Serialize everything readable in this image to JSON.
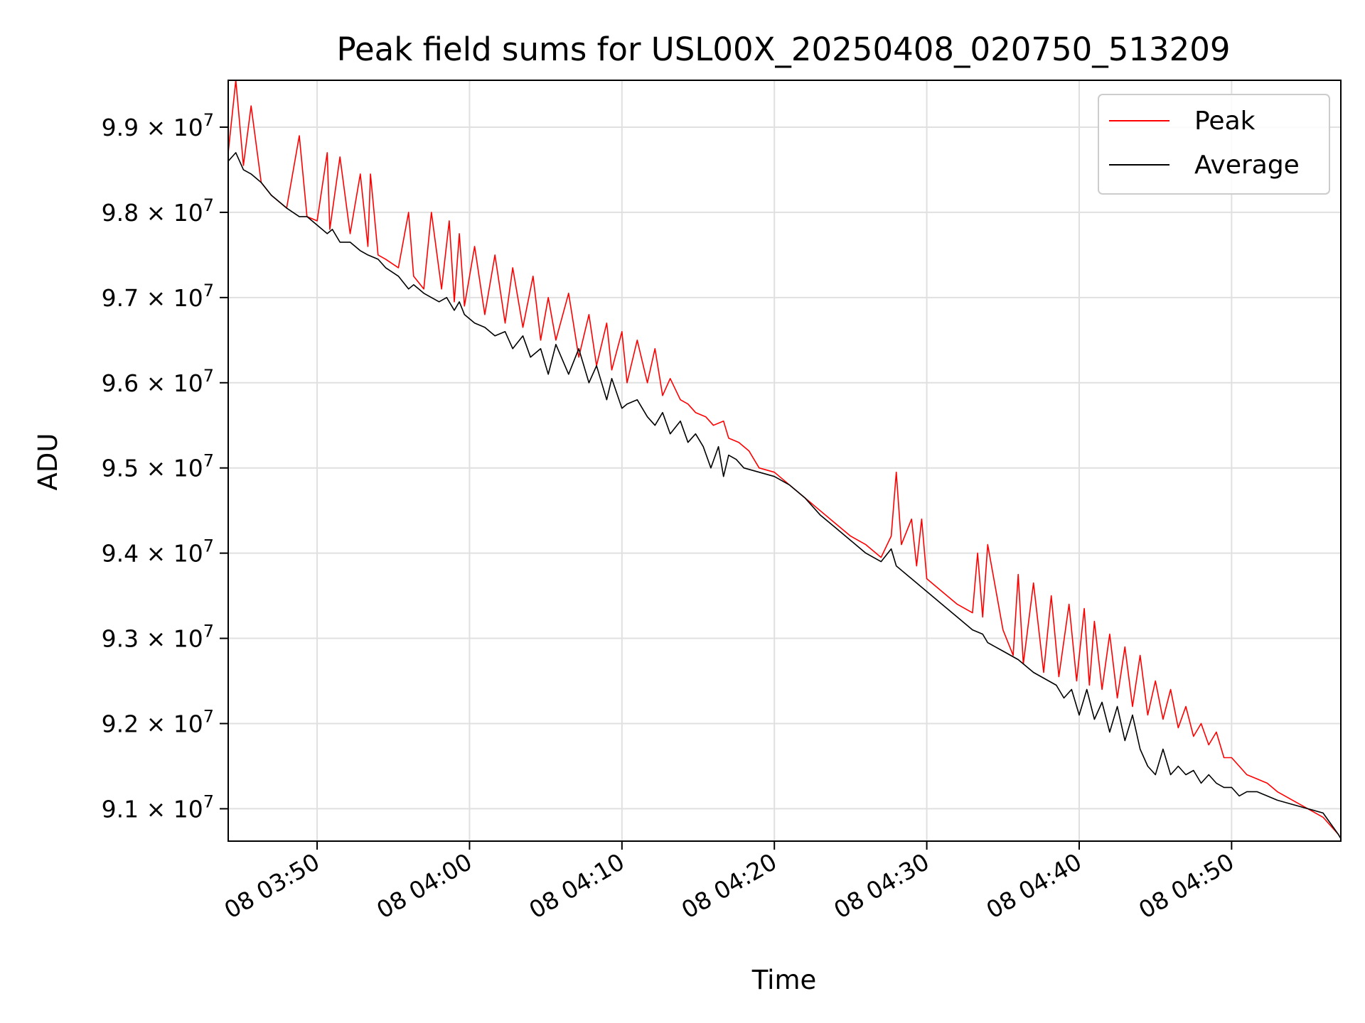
{
  "chart_data": {
    "type": "line",
    "title": "Peak field sums for USL00X_20250408_020750_513209",
    "xlabel": "Time",
    "ylabel": "ADU",
    "grid": true,
    "legend_position": "top-right",
    "x_range": [
      "03:44:10",
      "04:57:10"
    ],
    "ylim": [
      90620000,
      99550000
    ],
    "x_ticks": [
      "03:50",
      "04:00",
      "04:10",
      "04:20",
      "04:30",
      "04:40",
      "04:50"
    ],
    "x_tick_labels": [
      "08 03:50",
      "08 04:00",
      "08 04:10",
      "08 04:20",
      "08 04:30",
      "08 04:40",
      "08 04:50"
    ],
    "y_ticks": [
      91000000,
      92000000,
      93000000,
      94000000,
      95000000,
      96000000,
      97000000,
      98000000,
      99000000
    ],
    "y_tick_labels": [
      {
        "mant": "9.1",
        "exp": "7"
      },
      {
        "mant": "9.2",
        "exp": "7"
      },
      {
        "mant": "9.3",
        "exp": "7"
      },
      {
        "mant": "9.4",
        "exp": "7"
      },
      {
        "mant": "9.5",
        "exp": "7"
      },
      {
        "mant": "9.6",
        "exp": "7"
      },
      {
        "mant": "9.7",
        "exp": "7"
      },
      {
        "mant": "9.8",
        "exp": "7"
      },
      {
        "mant": "9.9",
        "exp": "7"
      }
    ],
    "series": [
      {
        "name": "Peak",
        "color": "#ff0000",
        "x": [
          "03:44:10",
          "03:44:40",
          "03:45:10",
          "03:45:40",
          "03:46:20",
          "03:47:00",
          "03:48:00",
          "03:48:50",
          "03:49:20",
          "03:50:00",
          "03:50:40",
          "03:50:50",
          "03:51:30",
          "03:52:10",
          "03:52:50",
          "03:53:20",
          "03:53:30",
          "03:54:00",
          "03:54:30",
          "03:55:20",
          "03:56:00",
          "03:56:20",
          "03:57:00",
          "03:57:30",
          "03:58:10",
          "03:58:40",
          "03:59:00",
          "03:59:20",
          "03:59:40",
          "04:00:20",
          "04:01:00",
          "04:01:40",
          "04:02:20",
          "04:02:50",
          "04:03:30",
          "04:04:10",
          "04:04:40",
          "04:05:10",
          "04:05:40",
          "04:06:30",
          "04:07:10",
          "04:07:50",
          "04:08:20",
          "04:09:00",
          "04:09:20",
          "04:10:00",
          "04:10:20",
          "04:11:00",
          "04:11:40",
          "04:12:10",
          "04:12:40",
          "04:13:10",
          "04:13:50",
          "04:14:20",
          "04:14:50",
          "04:15:30",
          "04:16:00",
          "04:16:40",
          "04:17:00",
          "04:17:40",
          "04:18:20",
          "04:19:00",
          "04:20:00",
          "04:21:00",
          "04:22:00",
          "04:23:00",
          "04:24:00",
          "04:25:00",
          "04:26:00",
          "04:27:00",
          "04:27:40",
          "04:28:00",
          "04:28:20",
          "04:29:00",
          "04:29:20",
          "04:29:40",
          "04:30:00",
          "04:31:00",
          "04:32:00",
          "04:33:00",
          "04:33:20",
          "04:33:40",
          "04:34:00",
          "04:35:00",
          "04:35:40",
          "04:36:00",
          "04:36:20",
          "04:37:00",
          "04:37:40",
          "04:38:10",
          "04:38:40",
          "04:39:20",
          "04:39:50",
          "04:40:20",
          "04:40:40",
          "04:41:00",
          "04:41:30",
          "04:42:00",
          "04:42:30",
          "04:43:00",
          "04:43:30",
          "04:44:00",
          "04:44:30",
          "04:45:00",
          "04:45:30",
          "04:46:00",
          "04:46:30",
          "04:47:00",
          "04:47:30",
          "04:48:00",
          "04:48:30",
          "04:49:00",
          "04:49:30",
          "04:50:00",
          "04:50:30",
          "04:51:00",
          "04:51:40",
          "04:52:20",
          "04:53:00",
          "04:54:00",
          "04:55:00",
          "04:56:00",
          "04:57:00",
          "04:57:10"
        ],
        "y": [
          98700000,
          99550000,
          98550000,
          99250000,
          98350000,
          98200000,
          98050000,
          98900000,
          97950000,
          97900000,
          98700000,
          97800000,
          98650000,
          97750000,
          98450000,
          97600000,
          98450000,
          97500000,
          97450000,
          97350000,
          98000000,
          97250000,
          97100000,
          98000000,
          97100000,
          97900000,
          96950000,
          97750000,
          96900000,
          97600000,
          96800000,
          97500000,
          96700000,
          97350000,
          96650000,
          97250000,
          96500000,
          97000000,
          96500000,
          97050000,
          96300000,
          96800000,
          96200000,
          96700000,
          96150000,
          96600000,
          96000000,
          96500000,
          96000000,
          96400000,
          95850000,
          96050000,
          95800000,
          95750000,
          95650000,
          95600000,
          95500000,
          95550000,
          95350000,
          95300000,
          95200000,
          95000000,
          94950000,
          94800000,
          94650000,
          94500000,
          94350000,
          94200000,
          94100000,
          93950000,
          94200000,
          94950000,
          94100000,
          94400000,
          93850000,
          94400000,
          93700000,
          93550000,
          93400000,
          93300000,
          94000000,
          93250000,
          94100000,
          93100000,
          92800000,
          93750000,
          92700000,
          93650000,
          92600000,
          93500000,
          92550000,
          93400000,
          92500000,
          93350000,
          92450000,
          93200000,
          92400000,
          93050000,
          92300000,
          92900000,
          92200000,
          92800000,
          92100000,
          92500000,
          92050000,
          92400000,
          91950000,
          92200000,
          91850000,
          92000000,
          91750000,
          91900000,
          91600000,
          91600000,
          91500000,
          91400000,
          91350000,
          91300000,
          91200000,
          91100000,
          91000000,
          90900000,
          90700000,
          90650000
        ]
      },
      {
        "name": "Average",
        "color": "#000000",
        "x": [
          "03:44:10",
          "03:44:40",
          "03:45:10",
          "03:45:40",
          "03:46:20",
          "03:47:00",
          "03:48:00",
          "03:48:50",
          "03:49:20",
          "03:50:00",
          "03:50:40",
          "03:51:00",
          "03:51:30",
          "03:52:10",
          "03:52:50",
          "03:53:20",
          "03:54:00",
          "03:54:30",
          "03:55:20",
          "03:56:00",
          "03:56:20",
          "03:57:00",
          "03:57:30",
          "03:58:00",
          "03:58:30",
          "03:59:00",
          "03:59:20",
          "03:59:40",
          "04:00:20",
          "04:01:00",
          "04:01:40",
          "04:02:20",
          "04:02:50",
          "04:03:30",
          "04:04:00",
          "04:04:40",
          "04:05:10",
          "04:05:40",
          "04:06:30",
          "04:07:10",
          "04:07:50",
          "04:08:20",
          "04:09:00",
          "04:09:20",
          "04:10:00",
          "04:10:20",
          "04:11:00",
          "04:11:40",
          "04:12:10",
          "04:12:40",
          "04:13:10",
          "04:13:50",
          "04:14:20",
          "04:14:50",
          "04:15:20",
          "04:15:50",
          "04:16:20",
          "04:16:40",
          "04:17:00",
          "04:17:30",
          "04:18:00",
          "04:19:00",
          "04:20:00",
          "04:21:00",
          "04:22:00",
          "04:23:00",
          "04:24:00",
          "04:25:00",
          "04:26:00",
          "04:27:00",
          "04:27:40",
          "04:28:00",
          "04:28:40",
          "04:29:00",
          "04:30:00",
          "04:31:00",
          "04:32:00",
          "04:33:00",
          "04:33:40",
          "04:34:00",
          "04:35:00",
          "04:36:00",
          "04:37:00",
          "04:38:00",
          "04:38:30",
          "04:39:00",
          "04:39:30",
          "04:40:00",
          "04:40:30",
          "04:41:00",
          "04:41:30",
          "04:42:00",
          "04:42:30",
          "04:43:00",
          "04:43:30",
          "04:44:00",
          "04:44:30",
          "04:45:00",
          "04:45:30",
          "04:46:00",
          "04:46:30",
          "04:47:00",
          "04:47:30",
          "04:48:00",
          "04:48:30",
          "04:49:00",
          "04:49:30",
          "04:50:00",
          "04:50:30",
          "04:51:00",
          "04:51:40",
          "04:52:20",
          "04:53:00",
          "04:54:00",
          "04:55:00",
          "04:56:00",
          "04:57:00",
          "04:57:10"
        ],
        "y": [
          98600000,
          98700000,
          98500000,
          98450000,
          98350000,
          98200000,
          98050000,
          97950000,
          97950000,
          97850000,
          97750000,
          97800000,
          97650000,
          97650000,
          97550000,
          97500000,
          97450000,
          97350000,
          97250000,
          97100000,
          97150000,
          97050000,
          97000000,
          96950000,
          97000000,
          96850000,
          96950000,
          96800000,
          96700000,
          96650000,
          96550000,
          96600000,
          96400000,
          96550000,
          96300000,
          96400000,
          96100000,
          96450000,
          96100000,
          96400000,
          96000000,
          96200000,
          95800000,
          96050000,
          95700000,
          95750000,
          95800000,
          95600000,
          95500000,
          95650000,
          95400000,
          95550000,
          95300000,
          95400000,
          95250000,
          95000000,
          95250000,
          94900000,
          95150000,
          95100000,
          95000000,
          94950000,
          94900000,
          94800000,
          94650000,
          94450000,
          94300000,
          94150000,
          94000000,
          93900000,
          94050000,
          93850000,
          93750000,
          93700000,
          93550000,
          93400000,
          93250000,
          93100000,
          93050000,
          92950000,
          92850000,
          92750000,
          92600000,
          92500000,
          92450000,
          92300000,
          92400000,
          92100000,
          92400000,
          92050000,
          92250000,
          91900000,
          92200000,
          91800000,
          92100000,
          91700000,
          91500000,
          91400000,
          91700000,
          91400000,
          91500000,
          91400000,
          91450000,
          91300000,
          91400000,
          91300000,
          91250000,
          91250000,
          91150000,
          91200000,
          91200000,
          91150000,
          91100000,
          91050000,
          91000000,
          90950000,
          90700000,
          90650000
        ]
      }
    ]
  }
}
